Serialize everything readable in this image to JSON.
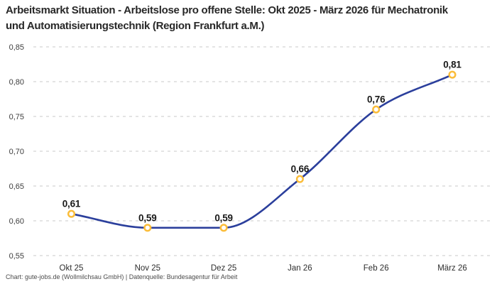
{
  "header": {
    "title": "Arbeitsmarkt Situation - Arbeitslose pro offene Stelle: Okt 2025 - März 2026 für Mechatronik und Automatisierungstechnik (Region Frankfurt a.M.)"
  },
  "chart_data": {
    "type": "line",
    "categories": [
      "Okt 25",
      "Nov 25",
      "Dez 25",
      "Jan 26",
      "Feb 26",
      "März 26"
    ],
    "values": [
      0.61,
      0.59,
      0.59,
      0.66,
      0.76,
      0.81
    ],
    "value_labels": [
      "0,61",
      "0,59",
      "0,59",
      "0,66",
      "0,76",
      "0,81"
    ],
    "series_name": "Arbeitslose pro offene Stelle",
    "y_ticks": [
      {
        "value": 0.85,
        "label": "0,85"
      },
      {
        "value": 0.8,
        "label": "0,80"
      },
      {
        "value": 0.75,
        "label": "0,75"
      },
      {
        "value": 0.7,
        "label": "0,70"
      },
      {
        "value": 0.65,
        "label": "0,65"
      },
      {
        "value": 0.6,
        "label": "0,60"
      },
      {
        "value": 0.55,
        "label": "0,55"
      }
    ],
    "ylim": [
      0.55,
      0.85
    ],
    "xlabel": "",
    "ylabel": "",
    "grid": "horizontal-dashed",
    "legend": "none",
    "interpolation": "monotone",
    "colors": {
      "line": "#2b3f9c",
      "marker_stroke": "#fbbd3a",
      "marker_fill": "#ffffff",
      "gridline": "#c9c9c9"
    }
  },
  "footer": {
    "attribution": "Chart: gute-jobs.de (Wollmilchsau GmbH) | Datenquelle: Bundesagentur für Arbeit"
  }
}
